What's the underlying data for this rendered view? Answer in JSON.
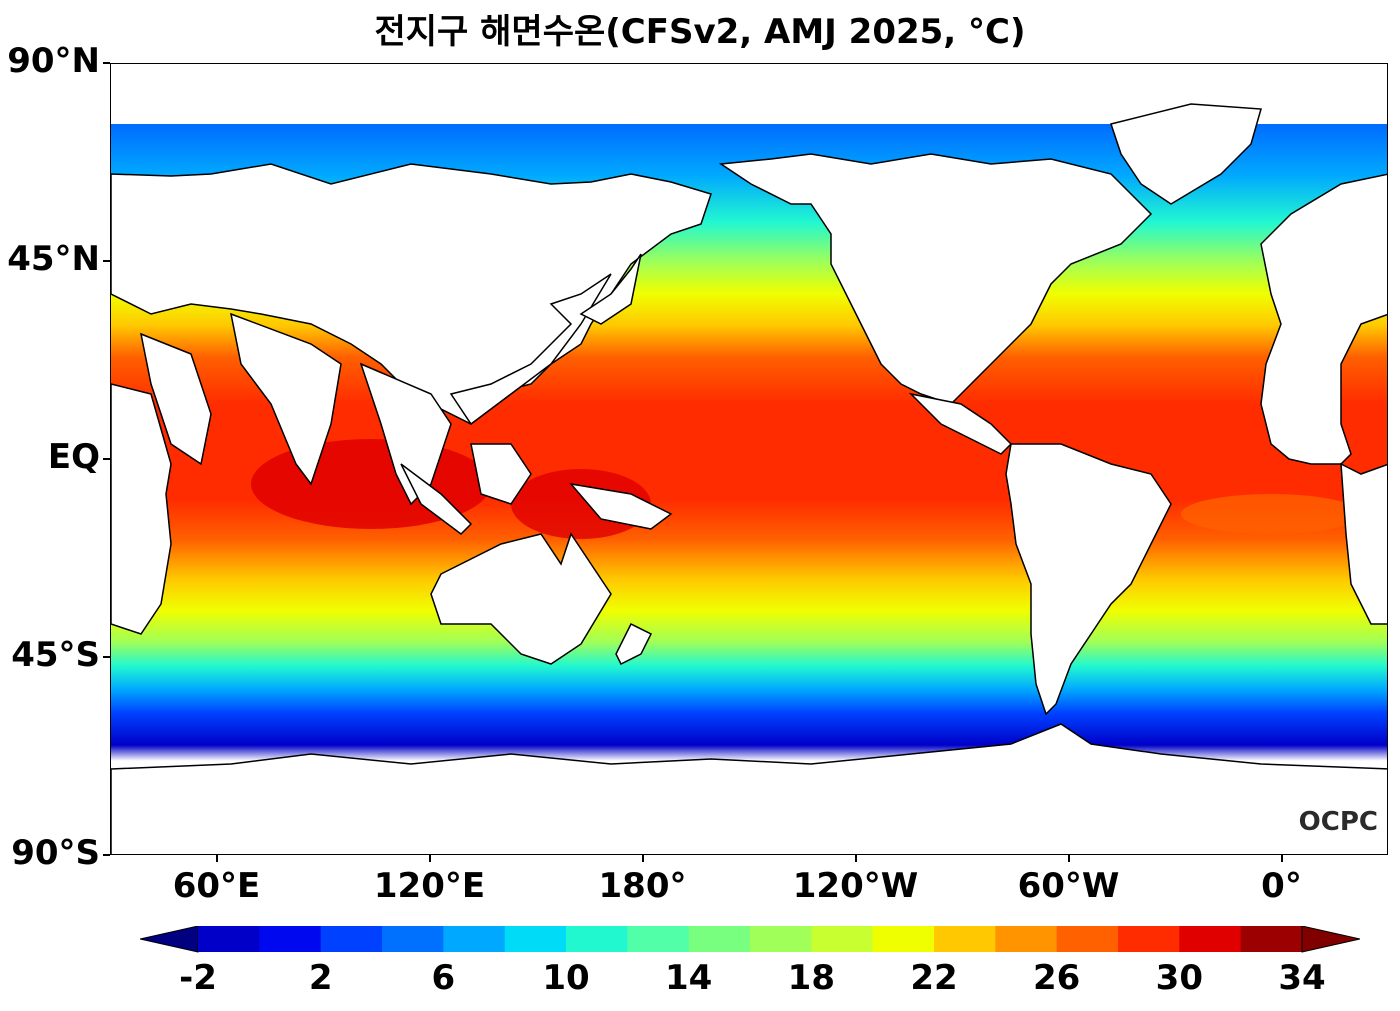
{
  "title": "전지구 해면수온(CFSv2, AMJ 2025, °C)",
  "map": {
    "type": "global sea surface temperature map",
    "projection": "equirectangular",
    "lon_range": [
      30,
      390
    ],
    "lat_range": [
      -90,
      90
    ],
    "y_ticks": [
      {
        "label": "90°N",
        "lat": 90
      },
      {
        "label": "45°N",
        "lat": 45
      },
      {
        "label": "EQ",
        "lat": 0
      },
      {
        "label": "45°S",
        "lat": -45
      },
      {
        "label": "90°S",
        "lat": -90
      }
    ],
    "x_ticks": [
      {
        "label": "60°E",
        "lon": 60
      },
      {
        "label": "120°E",
        "lon": 120
      },
      {
        "label": "180°",
        "lon": 180
      },
      {
        "label": "120°W",
        "lon": 240
      },
      {
        "label": "60°W",
        "lon": 300
      },
      {
        "label": "0°",
        "lon": 360
      }
    ],
    "ocean_color": "#ff3300",
    "land_color": "#ffffff"
  },
  "colorbar": {
    "levels": [
      -2,
      0,
      2,
      4,
      6,
      8,
      10,
      12,
      14,
      16,
      18,
      20,
      22,
      24,
      26,
      28,
      30,
      32,
      34
    ],
    "colors": [
      "#000098",
      "#0000c8",
      "#0008f0",
      "#0040ff",
      "#0070ff",
      "#00a8ff",
      "#00dcf8",
      "#22f8d0",
      "#50ffa8",
      "#78ff80",
      "#a0ff58",
      "#c8ff30",
      "#f0ff00",
      "#ffc800",
      "#ff9400",
      "#ff6000",
      "#ff2c00",
      "#e00000",
      "#9c0000"
    ],
    "under_color": "#000080",
    "over_color": "#800000",
    "tick_labels": [
      "-2",
      "2",
      "6",
      "10",
      "14",
      "18",
      "22",
      "26",
      "30",
      "34"
    ]
  },
  "logo": "OCPC"
}
